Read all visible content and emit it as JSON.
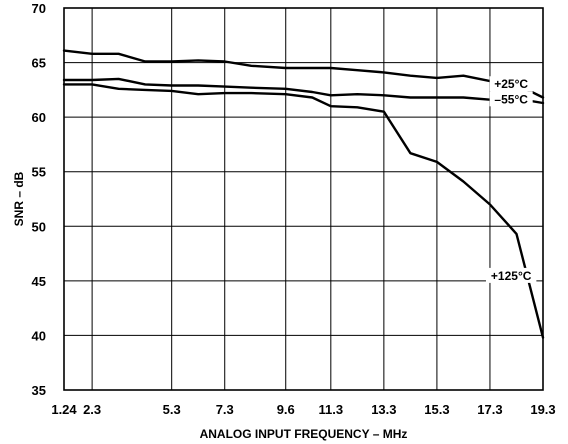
{
  "chart_data": {
    "type": "line",
    "title": "",
    "xlabel": "ANALOG INPUT FREQUENCY – MHz",
    "ylabel": "SNR – dB",
    "xlim": [
      1.24,
      19.3
    ],
    "ylim": [
      35,
      70
    ],
    "grid": true,
    "x_ticks": [
      {
        "value": 1.24,
        "label": "1.24"
      },
      {
        "value": 2.3,
        "label": "2.3"
      },
      {
        "value": 5.3,
        "label": "5.3"
      },
      {
        "value": 7.3,
        "label": "7.3"
      },
      {
        "value": 9.6,
        "label": "9.6"
      },
      {
        "value": 11.3,
        "label": "11.3"
      },
      {
        "value": 13.3,
        "label": "13.3"
      },
      {
        "value": 15.3,
        "label": "15.3"
      },
      {
        "value": 17.3,
        "label": "17.3"
      },
      {
        "value": 19.3,
        "label": "19.3"
      }
    ],
    "y_ticks": [
      {
        "value": 35,
        "label": "35"
      },
      {
        "value": 40,
        "label": "40"
      },
      {
        "value": 45,
        "label": "45"
      },
      {
        "value": 50,
        "label": "50"
      },
      {
        "value": 55,
        "label": "55"
      },
      {
        "value": 60,
        "label": "60"
      },
      {
        "value": 65,
        "label": "65"
      },
      {
        "value": 70,
        "label": "70"
      }
    ],
    "series": [
      {
        "name": "+25°C",
        "x": [
          1.24,
          2.3,
          3.3,
          4.3,
          5.3,
          6.3,
          7.3,
          8.3,
          9.6,
          10.6,
          11.3,
          12.3,
          13.3,
          14.3,
          15.3,
          16.3,
          17.3,
          18.3,
          19.3
        ],
        "y": [
          66.1,
          65.8,
          65.8,
          65.1,
          65.1,
          65.2,
          65.1,
          64.7,
          64.5,
          64.5,
          64.5,
          64.3,
          64.1,
          63.8,
          63.6,
          63.8,
          63.3,
          63.0,
          61.8
        ]
      },
      {
        "name": "–55°C",
        "x": [
          1.24,
          2.3,
          3.3,
          4.3,
          5.3,
          6.3,
          7.3,
          8.3,
          9.6,
          10.6,
          11.3,
          12.3,
          13.3,
          14.3,
          15.3,
          16.3,
          17.3,
          18.3,
          19.3
        ],
        "y": [
          63.4,
          63.4,
          63.5,
          63.0,
          62.9,
          62.9,
          62.8,
          62.7,
          62.6,
          62.3,
          62.0,
          62.1,
          62.0,
          61.8,
          61.8,
          61.8,
          61.6,
          61.7,
          61.3
        ]
      },
      {
        "name": "+125°C",
        "x": [
          1.24,
          2.3,
          3.3,
          4.3,
          5.3,
          6.3,
          7.3,
          8.3,
          9.6,
          10.6,
          11.3,
          12.3,
          13.3,
          14.3,
          15.3,
          16.3,
          17.3,
          18.3,
          19.3
        ],
        "y": [
          63.0,
          63.0,
          62.6,
          62.5,
          62.4,
          62.1,
          62.2,
          62.2,
          62.1,
          61.8,
          61.0,
          60.9,
          60.5,
          56.7,
          55.9,
          54.1,
          52.0,
          49.3,
          39.8
        ]
      }
    ],
    "series_labels": [
      {
        "series": 0,
        "text": "+25°C",
        "at_x": 18.1
      },
      {
        "series": 1,
        "text": "–55°C",
        "at_x": 18.1
      },
      {
        "series": 2,
        "text": "+125°C",
        "at_x": 18.1,
        "at_y": 45.5
      }
    ]
  }
}
